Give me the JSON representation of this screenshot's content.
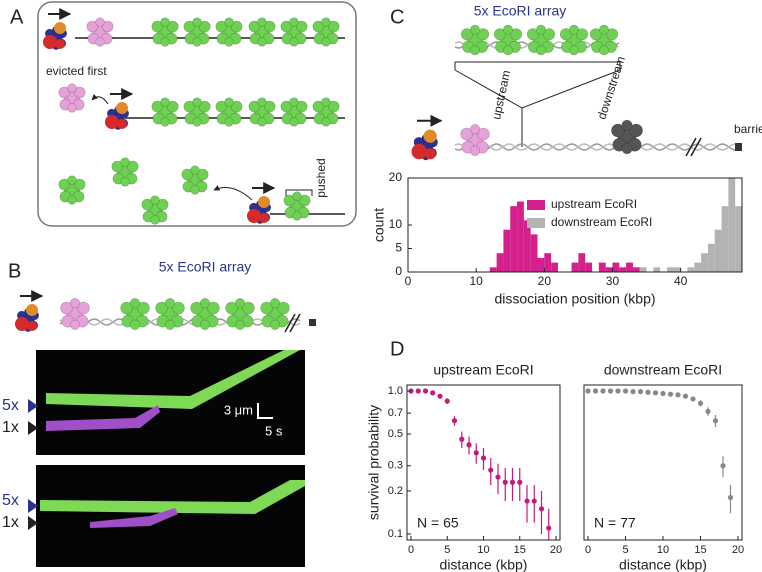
{
  "figure": {
    "panel_labels": [
      "A",
      "B",
      "C",
      "D"
    ],
    "panel_a": {
      "evicted": "evicted first",
      "pushed": "pushed"
    },
    "panel_b": {
      "array_label": "5x EcoRI array",
      "kymo_labels": [
        "5x",
        "1x",
        "5x",
        "1x"
      ],
      "scale_distance": "3 μm",
      "scale_time": "5 s"
    },
    "panel_c": {
      "array_label": "5x EcoRI array",
      "upstream": "upstream",
      "downstream": "downstream",
      "barrier": "barrier"
    }
  },
  "chart_data": [
    {
      "type": "histogram",
      "xlabel": "dissociation position (kbp)",
      "ylabel": "count",
      "legend": "upper right",
      "bins": [
        12,
        13,
        14,
        15,
        16,
        17,
        18,
        19,
        20,
        21,
        22,
        23,
        24,
        25,
        26,
        27,
        28,
        29,
        30,
        31,
        32,
        33,
        34,
        35,
        36,
        37,
        38,
        39,
        40,
        41,
        42,
        43,
        44,
        45,
        46,
        47,
        48,
        49
      ],
      "series": [
        {
          "name": "upstream EcoRI",
          "color": "#d4208d",
          "values": [
            1,
            4,
            9,
            14,
            15,
            11,
            8,
            3,
            4,
            2,
            0,
            0,
            2,
            4,
            2,
            0,
            2,
            1,
            2,
            1,
            2,
            1,
            0,
            0,
            0,
            0,
            0,
            0,
            0,
            0,
            0,
            0,
            0,
            0,
            0,
            0,
            0
          ]
        },
        {
          "name": "downstream EcoRI",
          "color": "#b3b3b3",
          "values": [
            0,
            0,
            0,
            0,
            0,
            0,
            0,
            0,
            0,
            0,
            0,
            0,
            0,
            0,
            0,
            0,
            0,
            0,
            0,
            0,
            0,
            0,
            1,
            0,
            1,
            0,
            1,
            1,
            0,
            1,
            2,
            4,
            6,
            9,
            14,
            20,
            14
          ]
        }
      ],
      "xlim": [
        0,
        49
      ],
      "xticks": [
        0,
        10,
        20,
        30,
        40
      ],
      "ylim": [
        0,
        20
      ],
      "yticks": [
        0,
        5,
        10,
        20
      ]
    },
    {
      "type": "scatter",
      "title": "upstream EcoRI",
      "xlabel": "distance (kbp)",
      "ylabel": "survival probability",
      "annotation": "N = 65",
      "log_y": true,
      "x": [
        0,
        1,
        2,
        3,
        4,
        5,
        6,
        7,
        8,
        9,
        10,
        11,
        12,
        13,
        14,
        15,
        16,
        17,
        18,
        19
      ],
      "series": [
        {
          "color": "#c41a7c",
          "values": [
            1.0,
            1.0,
            1.0,
            0.97,
            0.92,
            0.85,
            0.62,
            0.46,
            0.42,
            0.37,
            0.34,
            0.28,
            0.25,
            0.23,
            0.23,
            0.23,
            0.17,
            0.17,
            0.15,
            0.11
          ],
          "errors": [
            0,
            0,
            0,
            0.02,
            0.03,
            0.04,
            0.05,
            0.06,
            0.06,
            0.06,
            0.06,
            0.06,
            0.06,
            0.06,
            0.06,
            0.06,
            0.05,
            0.05,
            0.05,
            0.04
          ]
        }
      ],
      "xlim": [
        0,
        20
      ],
      "xticks": [
        0,
        5,
        10,
        15,
        20
      ],
      "ylim": [
        0.1,
        1.0
      ],
      "yticks": [
        {
          "value": 0.1,
          "label": "0.1"
        },
        0.2,
        0.3,
        0.5,
        0.7,
        {
          "value": 1.0,
          "label": "1.0"
        }
      ]
    },
    {
      "type": "scatter",
      "title": "downstream EcoRI",
      "xlabel": "distance (kbp)",
      "annotation": "N = 77",
      "log_y": true,
      "x": [
        0,
        1,
        2,
        3,
        4,
        5,
        6,
        7,
        8,
        9,
        10,
        11,
        12,
        13,
        14,
        15,
        16,
        17,
        18,
        19
      ],
      "series": [
        {
          "color": "#888888",
          "values": [
            1.0,
            1.0,
            1.0,
            1.0,
            1.0,
            1.0,
            0.99,
            0.99,
            0.98,
            0.97,
            0.96,
            0.95,
            0.94,
            0.92,
            0.88,
            0.82,
            0.72,
            0.62,
            0.3,
            0.18
          ],
          "errors": [
            0,
            0,
            0,
            0,
            0,
            0.01,
            0.01,
            0.01,
            0.01,
            0.01,
            0.02,
            0.02,
            0.02,
            0.02,
            0.03,
            0.04,
            0.05,
            0.06,
            0.05,
            0.04
          ]
        }
      ],
      "xlim": [
        0,
        20
      ],
      "xticks": [
        0,
        5,
        10,
        15,
        20
      ],
      "ylim": [
        0.1,
        1.0
      ]
    }
  ]
}
